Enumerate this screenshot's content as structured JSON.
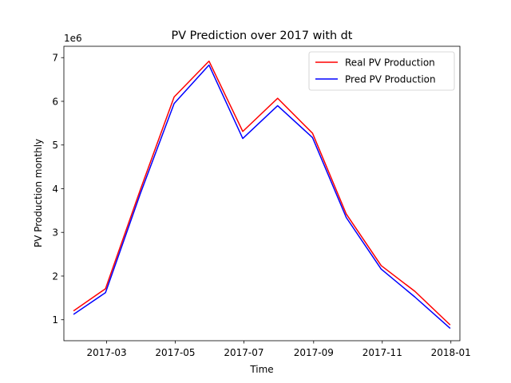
{
  "chart_data": {
    "type": "line",
    "title": "PV Prediction over 2017 with dt",
    "xlabel": "Time",
    "ylabel": "PV Production monthly",
    "y_offset_label": "1e6",
    "x_axis_type": "date",
    "xlim": [
      "2017-01-22",
      "2018-01-09"
    ],
    "ylim": [
      0.52,
      7.26
    ],
    "y_scale_factor": 1000000,
    "x_ticks": [
      {
        "date": "2017-03-01",
        "label": "2017-03"
      },
      {
        "date": "2017-05-01",
        "label": "2017-05"
      },
      {
        "date": "2017-07-01",
        "label": "2017-07"
      },
      {
        "date": "2017-09-01",
        "label": "2017-09"
      },
      {
        "date": "2017-11-01",
        "label": "2017-11"
      },
      {
        "date": "2018-01-01",
        "label": "2018-01"
      }
    ],
    "y_ticks": [
      {
        "value": 1,
        "label": "1"
      },
      {
        "value": 2,
        "label": "2"
      },
      {
        "value": 3,
        "label": "3"
      },
      {
        "value": 4,
        "label": "4"
      },
      {
        "value": 5,
        "label": "5"
      },
      {
        "value": 6,
        "label": "6"
      },
      {
        "value": 7,
        "label": "7"
      }
    ],
    "grid": false,
    "legend_position": "top-right",
    "x": [
      "2017-01-31",
      "2017-02-28",
      "2017-03-31",
      "2017-04-30",
      "2017-05-31",
      "2017-06-30",
      "2017-07-31",
      "2017-08-31",
      "2017-09-30",
      "2017-10-31",
      "2017-11-30",
      "2017-12-31"
    ],
    "series": [
      {
        "name": "Real PV Production",
        "color": "#ff0000",
        "values": [
          1.21,
          1.71,
          3.98,
          6.1,
          6.92,
          5.31,
          6.07,
          5.27,
          3.42,
          2.24,
          1.65,
          0.89
        ]
      },
      {
        "name": "Pred PV Production",
        "color": "#0000ff",
        "values": [
          1.13,
          1.62,
          3.89,
          5.95,
          6.83,
          5.15,
          5.9,
          5.17,
          3.34,
          2.16,
          1.52,
          0.81
        ]
      }
    ]
  }
}
